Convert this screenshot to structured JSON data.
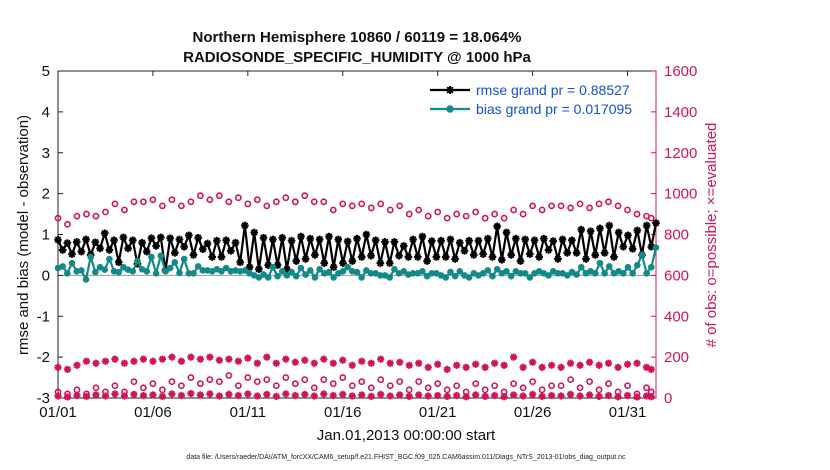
{
  "chart_data": {
    "type": "line",
    "title": "Northern Hemisphere 10860 / 60119 = 18.064%",
    "subtitle": "RADIOSONDE_SPECIFIC_HUMIDITY @ 1000 hPa",
    "xlabel": "Jan.01,2013 00:00:00 start",
    "ylabel": "rmse and bias (model - observation)",
    "y2label": "# of obs: o=possible; ×=evaluated",
    "xlim": [
      0,
      31.5
    ],
    "ylim": [
      -3,
      5
    ],
    "y2lim": [
      0,
      1600
    ],
    "x_ticks": [
      0,
      5,
      10,
      15,
      20,
      25,
      30
    ],
    "x_tick_labels": [
      "01/01",
      "01/06",
      "01/11",
      "01/16",
      "01/21",
      "01/26",
      "01/31"
    ],
    "y_ticks": [
      -3,
      -2,
      -1,
      0,
      1,
      2,
      3,
      4,
      5
    ],
    "y2_ticks": [
      0,
      200,
      400,
      600,
      800,
      1000,
      1200,
      1400,
      1600
    ],
    "colors": {
      "rmse": "#000000",
      "bias": "#138a8a",
      "obs": "#d0145a",
      "legend_text": "#1050d0",
      "zero_line": "#999999"
    },
    "legend": [
      {
        "key": "rmse",
        "label": "rmse grand pr = 0.88527"
      },
      {
        "key": "bias",
        "label": "bias grand pr = 0.017095"
      }
    ],
    "series": [
      {
        "name": "rmse",
        "axis": "left",
        "marker": "asterisk",
        "values": [
          0.87,
          0.62,
          0.79,
          0.52,
          0.82,
          0.58,
          0.88,
          0.5,
          0.81,
          0.66,
          1.03,
          0.62,
          0.86,
          0.32,
          0.93,
          0.66,
          0.86,
          0.28,
          0.8,
          0.58,
          0.91,
          0.72,
          0.93,
          0.12,
          0.91,
          0.55,
          0.88,
          0.7,
          0.98,
          0.5,
          0.92,
          0.64,
          0.78,
          0.45,
          0.85,
          0.45,
          0.86,
          0.6,
          0.8,
          0.32,
          1.22,
          0.2,
          1.05,
          0.15,
          0.92,
          0.25,
          0.88,
          0.25,
          0.92,
          0.15,
          0.85,
          0.35,
          0.95,
          0.4,
          0.9,
          0.5,
          0.88,
          0.3,
          0.95,
          0.2,
          0.88,
          0.3,
          0.83,
          0.35,
          0.9,
          0.45,
          1.0,
          0.48,
          0.86,
          0.3,
          0.82,
          0.3,
          0.82,
          0.48,
          0.72,
          0.45,
          0.88,
          0.45,
          0.95,
          0.35,
          0.84,
          0.45,
          0.85,
          0.45,
          0.88,
          0.4,
          0.8,
          0.6,
          0.85,
          0.5,
          0.85,
          0.52,
          0.9,
          0.45,
          1.2,
          0.38,
          1.05,
          0.5,
          0.9,
          0.35,
          0.88,
          0.52,
          0.86,
          0.45,
          0.9,
          0.62,
          0.84,
          0.4,
          0.88,
          0.55,
          0.86,
          0.55,
          1.12,
          0.4,
          1.08,
          0.5,
          1.15,
          0.55,
          1.22,
          0.45,
          1.05,
          0.7,
          0.98,
          0.65,
          1.1,
          0.5,
          1.22,
          0.7,
          1.28
        ]
      },
      {
        "name": "bias",
        "axis": "left",
        "marker": "dot",
        "values": [
          0.18,
          0.22,
          0.05,
          0.3,
          0.1,
          0.12,
          -0.1,
          0.45,
          0.08,
          0.2,
          0.14,
          0.4,
          0.1,
          0.08,
          0.2,
          0.14,
          0.1,
          0.35,
          0.15,
          0.1,
          0.45,
          0.05,
          0.48,
          0.1,
          0.18,
          0.32,
          0.06,
          0.4,
          0.05,
          0.05,
          0.22,
          0.12,
          0.12,
          0.1,
          0.15,
          0.1,
          0.18,
          0.1,
          0.12,
          0.1,
          0.12,
          0.05,
          0.0,
          -0.05,
          0.02,
          -0.05,
          0.2,
          -0.02,
          0.1,
          0.0,
          0.08,
          -0.02,
          0.18,
          0.02,
          0.12,
          -0.05,
          0.15,
          0.05,
          0.08,
          -0.05,
          0.05,
          0.1,
          0.2,
          0.1,
          0.08,
          -0.05,
          0.12,
          0.05,
          0.05,
          0.0,
          0.0,
          -0.05,
          0.15,
          0.05,
          0.1,
          0.02,
          0.05,
          0.05,
          0.1,
          -0.02,
          0.05,
          0.05,
          0.0,
          -0.05,
          0.08,
          -0.02,
          0.1,
          0.0,
          -0.05,
          0.05,
          0.0,
          0.05,
          0.12,
          -0.02,
          0.15,
          0.05,
          0.1,
          -0.02,
          0.1,
          0.05,
          0.05,
          -0.05,
          0.05,
          0.1,
          0.05,
          0.0,
          0.1,
          0.05,
          0.05,
          0.0,
          0.08,
          0.02,
          0.2,
          0.05,
          0.1,
          0.05,
          0.3,
          0.05,
          0.22,
          0.05,
          0.1,
          0.05,
          0.2,
          0.05,
          0.25,
          0.5,
          0.05,
          0.2,
          0.68
        ]
      },
      {
        "name": "obs possible",
        "axis": "right",
        "marker": "circle",
        "x": [
          0,
          0.5,
          1,
          1.5,
          2,
          2.5,
          3,
          3.5,
          4,
          4.5,
          5,
          5.5,
          6,
          6.5,
          7,
          7.5,
          8,
          8.5,
          9,
          9.5,
          10,
          10.5,
          11,
          11.5,
          12,
          12.5,
          13,
          13.5,
          14,
          14.5,
          15,
          15.5,
          16,
          16.5,
          17,
          17.5,
          18,
          18.5,
          19,
          19.5,
          20,
          20.5,
          21,
          21.5,
          22,
          22.5,
          23,
          23.5,
          24,
          24.5,
          25,
          25.5,
          26,
          26.5,
          27,
          27.5,
          28,
          28.5,
          29,
          29.5,
          30,
          30.5,
          31,
          31.25
        ],
        "values": [
          880,
          850,
          890,
          900,
          890,
          910,
          950,
          920,
          960,
          960,
          970,
          940,
          970,
          940,
          960,
          990,
          970,
          990,
          960,
          980,
          950,
          970,
          940,
          960,
          980,
          960,
          990,
          960,
          960,
          920,
          950,
          940,
          950,
          930,
          950,
          920,
          940,
          900,
          920,
          890,
          910,
          880,
          900,
          890,
          910,
          880,
          900,
          880,
          920,
          900,
          940,
          920,
          940,
          940,
          930,
          950,
          930,
          950,
          960,
          940,
          920,
          900,
          890,
          880
        ]
      },
      {
        "name": "obs possible low",
        "axis": "right",
        "marker": "circle",
        "x": [
          0,
          0.5,
          1,
          1.5,
          2,
          2.5,
          3,
          3.5,
          4,
          4.5,
          5,
          5.5,
          6,
          6.5,
          7,
          7.5,
          8,
          8.5,
          9,
          9.5,
          10,
          10.5,
          11,
          11.5,
          12,
          12.5,
          13,
          13.5,
          14,
          14.5,
          15,
          15.5,
          16,
          16.5,
          17,
          17.5,
          18,
          18.5,
          19,
          19.5,
          20,
          20.5,
          21,
          21.5,
          22,
          22.5,
          23,
          23.5,
          24,
          24.5,
          25,
          25.5,
          26,
          26.5,
          27,
          27.5,
          28,
          28.5,
          29,
          29.5,
          30,
          30.5,
          31,
          31.25
        ],
        "values": [
          30,
          20,
          40,
          20,
          50,
          30,
          60,
          30,
          80,
          50,
          70,
          40,
          80,
          60,
          100,
          70,
          90,
          80,
          110,
          60,
          100,
          80,
          90,
          60,
          100,
          70,
          90,
          50,
          90,
          70,
          100,
          60,
          80,
          50,
          90,
          60,
          80,
          40,
          80,
          50,
          70,
          40,
          60,
          30,
          70,
          40,
          60,
          30,
          70,
          50,
          80,
          40,
          60,
          60,
          90,
          50,
          80,
          40,
          70,
          30,
          60,
          20,
          50,
          30
        ]
      },
      {
        "name": "obs evaluated",
        "axis": "right",
        "marker": "x",
        "x": [
          0,
          0.5,
          1,
          1.5,
          2,
          2.5,
          3,
          3.5,
          4,
          4.5,
          5,
          5.5,
          6,
          6.5,
          7,
          7.5,
          8,
          8.5,
          9,
          9.5,
          10,
          10.5,
          11,
          11.5,
          12,
          12.5,
          13,
          13.5,
          14,
          14.5,
          15,
          15.5,
          16,
          16.5,
          17,
          17.5,
          18,
          18.5,
          19,
          19.5,
          20,
          20.5,
          21,
          21.5,
          22,
          22.5,
          23,
          23.5,
          24,
          24.5,
          25,
          25.5,
          26,
          26.5,
          27,
          27.5,
          28,
          28.5,
          29,
          29.5,
          30,
          30.5,
          31,
          31.25
        ],
        "values": [
          150,
          140,
          160,
          180,
          170,
          180,
          190,
          170,
          180,
          190,
          180,
          190,
          200,
          180,
          200,
          190,
          200,
          185,
          190,
          180,
          195,
          170,
          200,
          170,
          190,
          175,
          185,
          170,
          190,
          170,
          185,
          160,
          180,
          170,
          190,
          170,
          175,
          160,
          170,
          150,
          165,
          140,
          160,
          150,
          165,
          150,
          170,
          160,
          200,
          150,
          175,
          150,
          160,
          150,
          170,
          160,
          175,
          160,
          170,
          150,
          165,
          170,
          150,
          140
        ]
      },
      {
        "name": "obs evaluated low",
        "axis": "right",
        "marker": "x",
        "x": [
          0,
          0.5,
          1,
          1.5,
          2,
          2.5,
          3,
          3.5,
          4,
          4.5,
          5,
          5.5,
          6,
          6.5,
          7,
          7.5,
          8,
          8.5,
          9,
          9.5,
          10,
          10.5,
          11,
          11.5,
          12,
          12.5,
          13,
          13.5,
          14,
          14.5,
          15,
          15.5,
          16,
          16.5,
          17,
          17.5,
          18,
          18.5,
          19,
          19.5,
          20,
          20.5,
          21,
          21.5,
          22,
          22.5,
          23,
          23.5,
          24,
          24.5,
          25,
          25.5,
          26,
          26.5,
          27,
          27.5,
          28,
          28.5,
          29,
          29.5,
          30,
          30.5,
          31,
          31.25
        ],
        "values": [
          10,
          5,
          12,
          8,
          15,
          10,
          20,
          10,
          18,
          12,
          15,
          8,
          20,
          12,
          22,
          15,
          20,
          10,
          18,
          12,
          20,
          10,
          18,
          8,
          20,
          12,
          18,
          10,
          20,
          12,
          18,
          10,
          15,
          8,
          18,
          10,
          15,
          8,
          15,
          10,
          12,
          8,
          12,
          6,
          15,
          8,
          12,
          6,
          15,
          10,
          18,
          8,
          12,
          10,
          18,
          10,
          15,
          8,
          12,
          6,
          12,
          5,
          10,
          6
        ]
      }
    ]
  },
  "footer": "data file: /Users/raeder/DAI/ATM_forcXX/CAM6_setup/f.e21.FHIST_BGC.f09_025.CAM6assim.011/Diags_NTrS_2013-01/obs_diag_output.nc"
}
